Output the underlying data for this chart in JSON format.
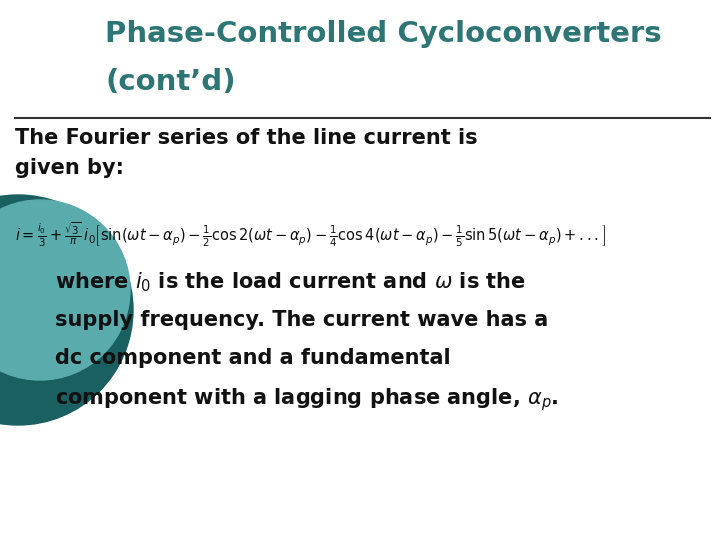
{
  "title_line1": "Phase-Controlled Cycloconverters",
  "title_line2": "(cont’d)",
  "title_color": "#2e7575",
  "background_color": "#ffffff",
  "body_text_1": "The Fourier series of the line current is\ngiven by:",
  "equation": "i = \\frac{i_0}{3} + \\frac{\\sqrt{3}}{\\pi}\\,i_0\\left[\\sin(\\omega t - \\alpha_p) - \\frac{1}{2}\\cos 2(\\omega t - \\alpha_p) - \\frac{1}{4}\\cos 4(\\omega t - \\alpha_p) - \\frac{1}{5}\\sin 5(\\omega t - \\alpha_p) + ...\\right]",
  "body_text_2_pre": "where ",
  "body_text_2_mid1": " is the load current and ",
  "body_text_2_line2": "supply frequency. The current wave has a",
  "body_text_2_line3": "dc component and a fundamental",
  "body_text_2_line4": "component with a lagging phase angle,",
  "circle_outer_color": "#1a6060",
  "circle_inner_color": "#5aabab",
  "line_color": "#333333",
  "figwidth": 7.2,
  "figheight": 5.4,
  "dpi": 100
}
